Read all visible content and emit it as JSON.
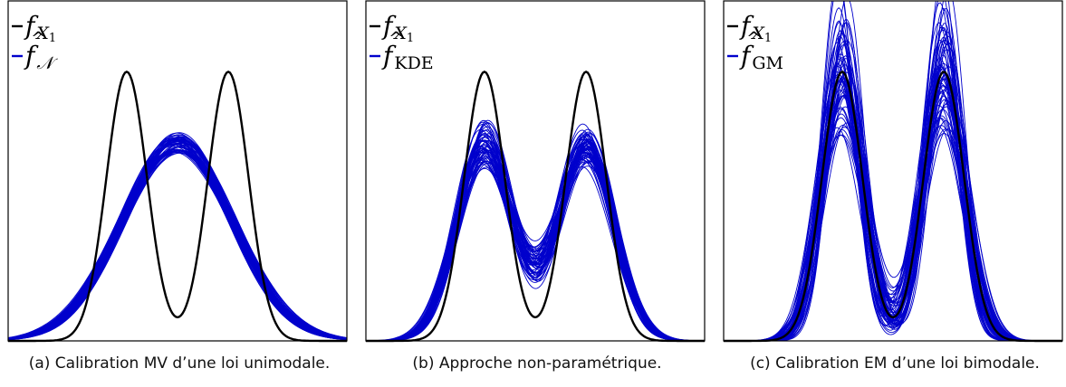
{
  "colors": {
    "true_density": "#000000",
    "estimates": "#0000cc",
    "frame": "#000000"
  },
  "chart_data": [
    {
      "type": "line",
      "caption": "(a) Calibration MV d’une loi unimodale.",
      "legend": [
        {
          "name": "f_{X_1}",
          "symbol": "f",
          "sub": "X",
          "subsub": "1",
          "hat": false,
          "color": "#000000"
        },
        {
          "name": "\\hat{f}_{\\mathcal{N}}",
          "symbol": "f",
          "sub": "𝒩",
          "subsub": "",
          "hat": true,
          "color": "#0000cc"
        }
      ],
      "legend_position": "top-left",
      "xlim": [
        -5,
        5
      ],
      "ylim": [
        0,
        0.42
      ],
      "true_density": {
        "components": [
          {
            "w": 0.5,
            "mu": -1.5,
            "sigma": 0.6
          },
          {
            "w": 0.5,
            "mu": 1.5,
            "sigma": 0.6
          }
        ]
      },
      "estimates": {
        "model": "normal",
        "count": 60,
        "mu_range": [
          -0.15,
          0.15
        ],
        "sigma_range": [
          1.55,
          1.72
        ]
      }
    },
    {
      "type": "line",
      "caption": "(b) Approche non-paramétrique.",
      "legend": [
        {
          "name": "f_{X_1}",
          "symbol": "f",
          "sub": "X",
          "subsub": "1",
          "hat": false,
          "color": "#000000"
        },
        {
          "name": "\\hat{f}_{KDE}",
          "symbol": "f",
          "sub": "KDE",
          "subsub": "",
          "hat": true,
          "color": "#0000cc"
        }
      ],
      "legend_position": "top-left",
      "xlim": [
        -5,
        5
      ],
      "ylim": [
        0,
        0.42
      ],
      "true_density": {
        "components": [
          {
            "w": 0.5,
            "mu": -1.5,
            "sigma": 0.6
          },
          {
            "w": 0.5,
            "mu": 1.5,
            "sigma": 0.6
          }
        ]
      },
      "estimates": {
        "model": "kde",
        "count": 60,
        "peak_range": [
          0.22,
          0.3
        ],
        "trough_range": [
          0.15,
          0.18
        ]
      }
    },
    {
      "type": "line",
      "caption": "(c) Calibration EM d’une loi bimodale.",
      "legend": [
        {
          "name": "f_{X_1}",
          "symbol": "f",
          "sub": "X",
          "subsub": "1",
          "hat": false,
          "color": "#000000"
        },
        {
          "name": "\\hat{f}_{GM}",
          "symbol": "f",
          "sub": "GM",
          "subsub": "",
          "hat": true,
          "color": "#0000cc"
        }
      ],
      "legend_position": "top-left",
      "xlim": [
        -5,
        5
      ],
      "ylim": [
        0,
        0.42
      ],
      "true_density": {
        "components": [
          {
            "w": 0.5,
            "mu": -1.5,
            "sigma": 0.6
          },
          {
            "w": 0.5,
            "mu": 1.5,
            "sigma": 0.6
          }
        ]
      },
      "estimates": {
        "model": "gaussian_mixture",
        "count": 60,
        "peak_range": [
          0.27,
          0.42
        ],
        "trough_range": [
          0.06,
          0.17
        ]
      }
    }
  ]
}
